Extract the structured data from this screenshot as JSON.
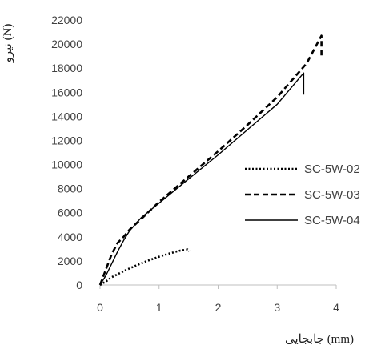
{
  "chart_data": {
    "type": "line",
    "xlabel": "جابجایی (mm)",
    "ylabel": "نیرو (N)",
    "xlim": [
      0,
      4
    ],
    "ylim": [
      0,
      22000
    ],
    "xticks": [
      "0",
      "1",
      "2",
      "3",
      "4"
    ],
    "yticks": [
      "0",
      "2000",
      "4000",
      "6000",
      "8000",
      "10000",
      "12000",
      "14000",
      "16000",
      "18000",
      "20000",
      "22000"
    ],
    "grid": false,
    "legend_position": "right",
    "series": [
      {
        "name": "SC-5W-02",
        "style": "dotted",
        "color": "#000000",
        "points": [
          [
            0,
            0
          ],
          [
            0.1,
            300
          ],
          [
            0.2,
            650
          ],
          [
            0.4,
            1150
          ],
          [
            0.6,
            1600
          ],
          [
            0.8,
            2000
          ],
          [
            1.0,
            2350
          ],
          [
            1.2,
            2650
          ],
          [
            1.35,
            2850
          ],
          [
            1.48,
            2950
          ],
          [
            1.51,
            2800
          ]
        ]
      },
      {
        "name": "SC-5W-03",
        "style": "dashed",
        "color": "#000000",
        "points": [
          [
            0,
            0
          ],
          [
            0.1,
            1300
          ],
          [
            0.2,
            2600
          ],
          [
            0.3,
            3500
          ],
          [
            0.4,
            4000
          ],
          [
            0.5,
            4600
          ],
          [
            0.7,
            5500
          ],
          [
            1.0,
            6900
          ],
          [
            1.5,
            9000
          ],
          [
            2.0,
            11100
          ],
          [
            2.5,
            13300
          ],
          [
            3.0,
            15600
          ],
          [
            3.5,
            18400
          ],
          [
            3.75,
            20700
          ],
          [
            3.75,
            18800
          ]
        ]
      },
      {
        "name": "SC-5W-04",
        "style": "solid",
        "color": "#000000",
        "points": [
          [
            0,
            0
          ],
          [
            0.1,
            800
          ],
          [
            0.2,
            1800
          ],
          [
            0.3,
            2800
          ],
          [
            0.4,
            3700
          ],
          [
            0.5,
            4500
          ],
          [
            0.7,
            5600
          ],
          [
            1.0,
            6800
          ],
          [
            1.5,
            8800
          ],
          [
            2.0,
            10800
          ],
          [
            2.5,
            12900
          ],
          [
            3.0,
            15000
          ],
          [
            3.45,
            17600
          ],
          [
            3.45,
            15800
          ]
        ]
      }
    ]
  }
}
